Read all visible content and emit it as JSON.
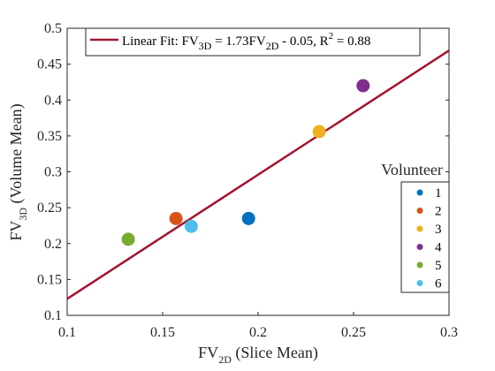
{
  "chart_data": {
    "type": "scatter",
    "xlim": [
      0.1,
      0.3
    ],
    "ylim": [
      0.1,
      0.5
    ],
    "x_ticks": [
      "0.1",
      "0.15",
      "0.2",
      "0.25",
      "0.3"
    ],
    "y_ticks": [
      "0.1",
      "0.15",
      "0.2",
      "0.25",
      "0.3",
      "0.35",
      "0.4",
      "0.45",
      "0.5"
    ],
    "xlabel": {
      "base": "FV",
      "sub": "2D",
      "rest": " (Slice Mean)"
    },
    "ylabel": {
      "base": "FV",
      "sub": "3D",
      "rest": " (Volume Mean)"
    },
    "grid": false,
    "points": [
      {
        "name": "1",
        "x": 0.195,
        "y": 0.235,
        "color": "#0072BD"
      },
      {
        "name": "2",
        "x": 0.157,
        "y": 0.235,
        "color": "#D95319"
      },
      {
        "name": "3",
        "x": 0.232,
        "y": 0.356,
        "color": "#EDB120"
      },
      {
        "name": "4",
        "x": 0.255,
        "y": 0.42,
        "color": "#7E2F8E"
      },
      {
        "name": "5",
        "x": 0.132,
        "y": 0.206,
        "color": "#77AC30"
      },
      {
        "name": "6",
        "x": 0.165,
        "y": 0.224,
        "color": "#4DBEEE"
      }
    ],
    "fit": {
      "slope": 1.73,
      "intercept": -0.05,
      "color": "#A2142F",
      "label": {
        "p1": "Linear Fit: FV",
        "s1": "3D",
        "p2": " = 1.73FV",
        "s2": "2D",
        "p3": " - 0.05, R",
        "sup": "2",
        "p4": " = 0.88"
      }
    },
    "legend": {
      "title": "Volunteer",
      "placement": "right"
    }
  }
}
